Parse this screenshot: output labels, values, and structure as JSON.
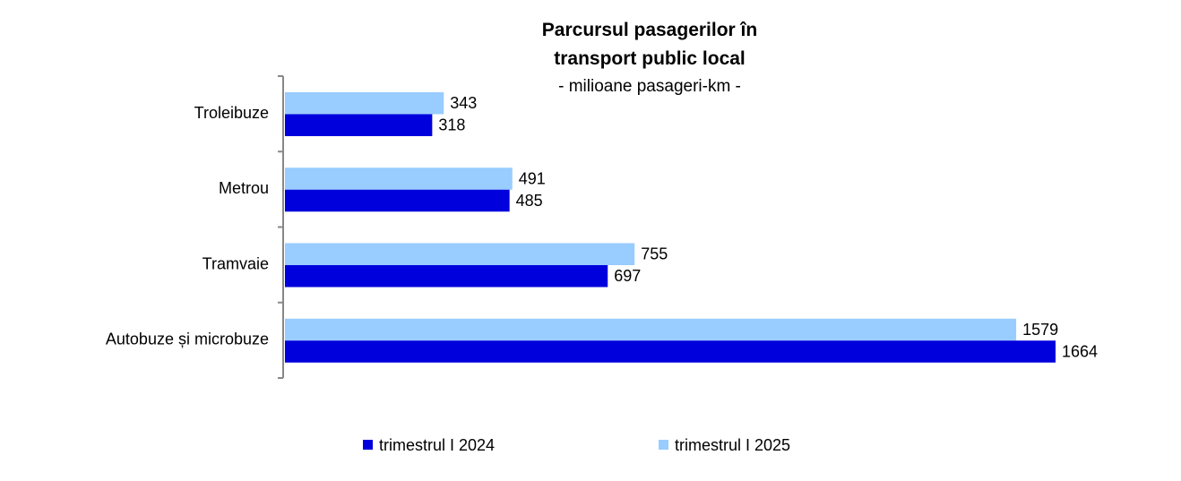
{
  "chart_data": {
    "type": "bar",
    "orientation": "horizontal",
    "title": "Parcursul pasagerilor în transport public local",
    "subtitle": "- milioane pasageri-km -",
    "categories": [
      "Troleibuze",
      "Metrou",
      "Tramvaie",
      "Autobuze și microbuze"
    ],
    "series": [
      {
        "name": "trimestrul I 2025",
        "color": "#99ccff",
        "values": [
          343,
          491,
          755,
          1579
        ]
      },
      {
        "name": "trimestrul I 2024",
        "color": "#0000dd",
        "values": [
          318,
          485,
          697,
          1664
        ]
      }
    ],
    "legend": "bottom"
  }
}
